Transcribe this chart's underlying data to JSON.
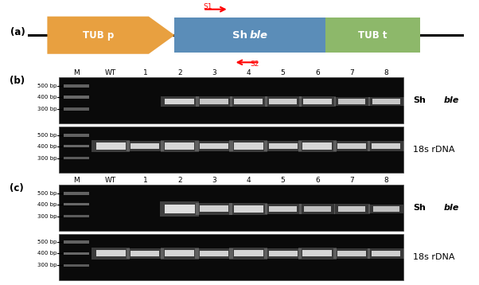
{
  "fig_width": 6.02,
  "fig_height": 3.58,
  "bg_color": "#ffffff",
  "panel_a": {
    "tub_p_color": "#E8A040",
    "shble_color": "#5B8DB8",
    "tub_t_color": "#8DB86A"
  },
  "lane_labels": [
    "M",
    "WT",
    "1",
    "2",
    "3",
    "4",
    "5",
    "6",
    "7",
    "8"
  ],
  "bp_labels": [
    "500 bp",
    "400 bp",
    "300 bp"
  ],
  "gel_bg": "#0a0a0a",
  "band_color_bright": "#e8e8e8",
  "band_color_ladder": "#888888"
}
